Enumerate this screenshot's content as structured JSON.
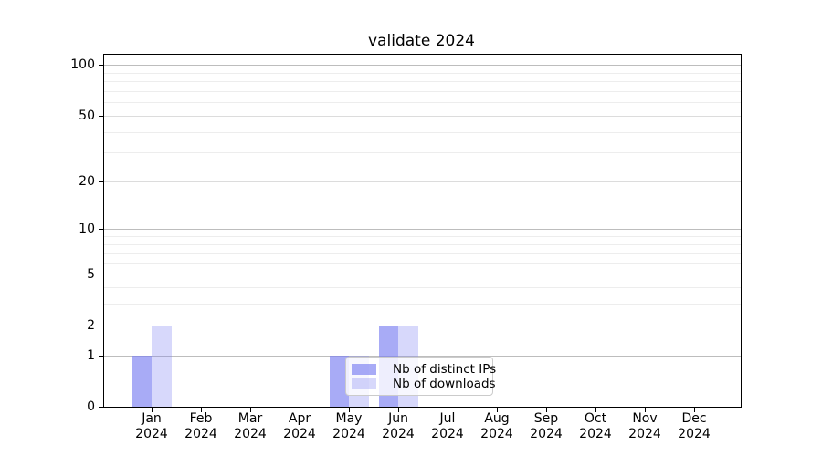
{
  "chart_data": {
    "type": "bar",
    "title": "validate 2024",
    "categories": [
      "Jan 2024",
      "Feb 2024",
      "Mar 2024",
      "Apr 2024",
      "May 2024",
      "Jun 2024",
      "Jul 2024",
      "Aug 2024",
      "Sep 2024",
      "Oct 2024",
      "Nov 2024",
      "Dec 2024"
    ],
    "series": [
      {
        "name": "Nb of distinct IPs",
        "color": "rgba(122,126,241,0.65)",
        "values": [
          1,
          0,
          0,
          0,
          1,
          2,
          0,
          0,
          0,
          0,
          0,
          0
        ]
      },
      {
        "name": "Nb of downloads",
        "color": "rgba(122,126,241,0.30)",
        "values": [
          2,
          0,
          0,
          0,
          1,
          2,
          0,
          0,
          0,
          0,
          0,
          0
        ]
      }
    ],
    "xlabel": "",
    "ylabel": "",
    "y_axis": {
      "scale": "log1p",
      "tick_values": [
        0,
        1,
        2,
        5,
        10,
        20,
        50,
        100
      ],
      "major_gridlines": [
        1,
        10,
        100
      ],
      "labeled_gridlines": [
        2,
        5,
        20,
        50
      ],
      "minor_gridlines": [
        3,
        4,
        6,
        7,
        8,
        9,
        30,
        40,
        60,
        70,
        80,
        90
      ],
      "ylim": [
        0,
        115
      ]
    },
    "grid": "horizontal",
    "legend_position": "lower center",
    "colors": {
      "major_grid": "#bdbdbd",
      "mid_grid": "#dcdcdc",
      "minor_grid": "#ededed",
      "spine": "#000000"
    }
  }
}
